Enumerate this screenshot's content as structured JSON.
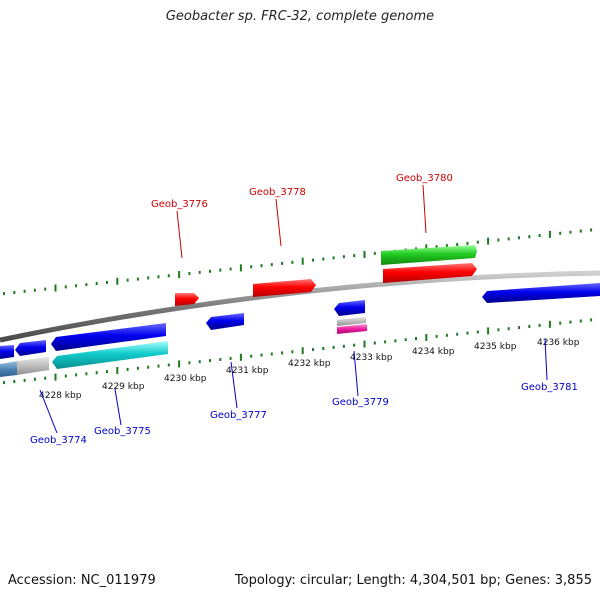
{
  "title": "Geobacter sp. FRC-32, complete genome",
  "footer": {
    "accession": "Accession: NC_011979",
    "summary": "Topology: circular; Length: 4,304,501 bp; Genes: 3,855"
  },
  "colors": {
    "backbone": "#8a8a8a",
    "ticks": "#1e7a1e",
    "forward_label": "#cc0000",
    "reverse_label": "#0000cc"
  },
  "ticks": {
    "labels": [
      "4228 kbp",
      "4229 kbp",
      "4230 kbp",
      "4231 kbp",
      "4232 kbp",
      "4233 kbp",
      "4234 kbp",
      "4235 kbp",
      "4236 kbp"
    ]
  },
  "genes": {
    "forward_labels": [
      "Geob_3776",
      "Geob_3778",
      "Geob_3780"
    ],
    "reverse_labels": [
      "Geob_3774",
      "Geob_3775",
      "Geob_3777",
      "Geob_3779",
      "Geob_3781"
    ]
  }
}
